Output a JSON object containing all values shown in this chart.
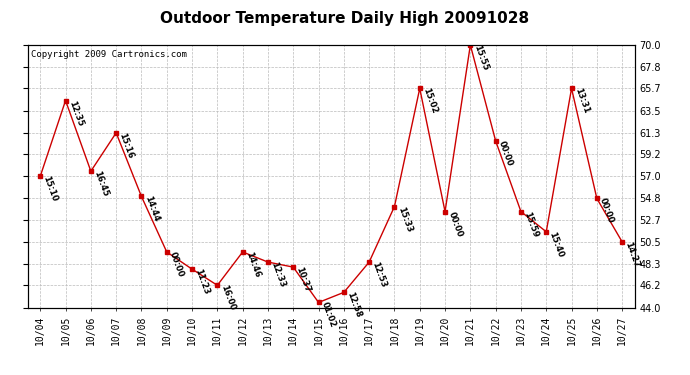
{
  "title": "Outdoor Temperature Daily High 20091028",
  "copyright": "Copyright 2009 Cartronics.com",
  "dates": [
    "10/04",
    "10/05",
    "10/06",
    "10/07",
    "10/08",
    "10/09",
    "10/10",
    "10/11",
    "10/12",
    "10/13",
    "10/14",
    "10/15",
    "10/16",
    "10/17",
    "10/18",
    "10/19",
    "10/20",
    "10/21",
    "10/22",
    "10/23",
    "10/24",
    "10/25",
    "10/26",
    "10/27"
  ],
  "values": [
    57.0,
    64.5,
    57.5,
    61.3,
    55.0,
    49.5,
    47.8,
    46.2,
    49.5,
    48.5,
    48.0,
    44.5,
    45.5,
    48.5,
    54.0,
    65.7,
    53.5,
    70.0,
    60.5,
    53.5,
    51.5,
    65.7,
    54.8,
    50.5
  ],
  "times": [
    "15:10",
    "12:35",
    "16:45",
    "15:16",
    "14:44",
    "00:00",
    "11:23",
    "16:00",
    "14:46",
    "12:33",
    "10:37",
    "01:02",
    "12:58",
    "12:53",
    "15:33",
    "15:02",
    "00:00",
    "15:55",
    "00:00",
    "15:59",
    "15:40",
    "13:31",
    "00:00",
    "14:27"
  ],
  "ylim": [
    44.0,
    70.0
  ],
  "yticks": [
    44.0,
    46.2,
    48.3,
    50.5,
    52.7,
    54.8,
    57.0,
    59.2,
    61.3,
    63.5,
    65.7,
    67.8,
    70.0
  ],
  "line_color": "#cc0000",
  "marker_color": "#cc0000",
  "bg_color": "#ffffff",
  "grid_color": "#bbbbbb",
  "title_fontsize": 11,
  "tick_fontsize": 7,
  "annot_fontsize": 6.0,
  "copyright_fontsize": 6.5
}
